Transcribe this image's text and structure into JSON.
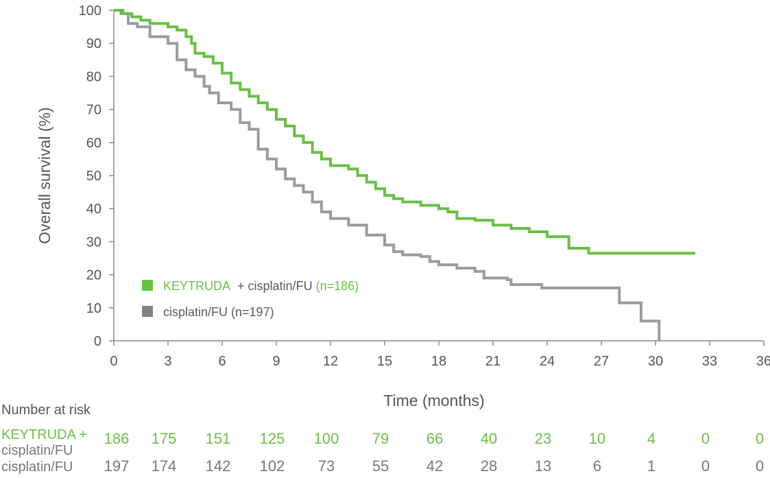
{
  "chart_data": {
    "type": "line",
    "subtype": "kaplan-meier step",
    "xlabel": "Time (months)",
    "ylabel": "Overall survival (%)",
    "xlim": [
      0,
      36
    ],
    "ylim": [
      0,
      100
    ],
    "xticks": [
      0,
      3,
      6,
      9,
      12,
      15,
      18,
      21,
      24,
      27,
      30,
      33,
      36
    ],
    "yticks": [
      0,
      10,
      20,
      30,
      40,
      50,
      60,
      70,
      80,
      90,
      100
    ],
    "grid": false,
    "legend_position": "bottom-left",
    "series": [
      {
        "name_parts": [
          "KEYTRUDA",
          "+",
          "cisplatin/FU",
          "(n=186)"
        ],
        "color": "#6abf45",
        "points": [
          [
            0,
            100
          ],
          [
            0.5,
            99
          ],
          [
            1,
            98
          ],
          [
            1.5,
            97
          ],
          [
            2,
            96
          ],
          [
            3,
            95
          ],
          [
            3.5,
            94
          ],
          [
            4,
            92
          ],
          [
            4.3,
            90
          ],
          [
            4.5,
            87
          ],
          [
            5,
            86
          ],
          [
            5.5,
            84
          ],
          [
            6,
            81
          ],
          [
            6.5,
            78
          ],
          [
            7,
            76
          ],
          [
            7.5,
            74
          ],
          [
            8,
            72
          ],
          [
            8.5,
            70
          ],
          [
            9,
            67
          ],
          [
            9.5,
            65
          ],
          [
            10,
            62
          ],
          [
            10.5,
            60
          ],
          [
            11,
            57
          ],
          [
            11.5,
            55
          ],
          [
            12,
            53
          ],
          [
            13,
            52
          ],
          [
            13.5,
            50
          ],
          [
            14,
            48
          ],
          [
            14.5,
            46
          ],
          [
            15,
            44
          ],
          [
            15.5,
            43
          ],
          [
            16,
            42
          ],
          [
            17,
            41
          ],
          [
            18,
            40
          ],
          [
            18.5,
            39
          ],
          [
            19,
            37
          ],
          [
            20,
            36.5
          ],
          [
            21,
            35
          ],
          [
            22,
            34
          ],
          [
            23,
            33
          ],
          [
            24,
            31.5
          ],
          [
            25.2,
            28
          ],
          [
            26.3,
            26.5
          ],
          [
            32.2,
            26.5
          ]
        ]
      },
      {
        "name": "cisplatin/FU (n=197)",
        "color": "#9b9b9b",
        "legend_color": "#808285",
        "points": [
          [
            0,
            100
          ],
          [
            0.4,
            99
          ],
          [
            0.8,
            96
          ],
          [
            1.3,
            95
          ],
          [
            2,
            92
          ],
          [
            3,
            90
          ],
          [
            3.5,
            85
          ],
          [
            4,
            82
          ],
          [
            4.5,
            80
          ],
          [
            5,
            77
          ],
          [
            5.3,
            75
          ],
          [
            5.8,
            72
          ],
          [
            6.5,
            70
          ],
          [
            7,
            66
          ],
          [
            7.5,
            64
          ],
          [
            8,
            58
          ],
          [
            8.5,
            55
          ],
          [
            9,
            52
          ],
          [
            9.5,
            49
          ],
          [
            10,
            47
          ],
          [
            10.5,
            45
          ],
          [
            11,
            42
          ],
          [
            11.5,
            39
          ],
          [
            12,
            37
          ],
          [
            13,
            35
          ],
          [
            14,
            32
          ],
          [
            15,
            29
          ],
          [
            15.5,
            27
          ],
          [
            16,
            26
          ],
          [
            17,
            25.5
          ],
          [
            17.5,
            24
          ],
          [
            18,
            23
          ],
          [
            19,
            22
          ],
          [
            20,
            21
          ],
          [
            20.5,
            19
          ],
          [
            21.8,
            18.5
          ],
          [
            22,
            17
          ],
          [
            23.7,
            16
          ],
          [
            28,
            11.5
          ],
          [
            29.2,
            6
          ],
          [
            30.2,
            0
          ]
        ]
      }
    ],
    "risk_table": {
      "title": "Number at risk",
      "rows": [
        {
          "label1": "KEYTRUDA +",
          "label2": "cisplatin/FU",
          "values": [
            186,
            175,
            151,
            125,
            100,
            79,
            66,
            40,
            23,
            10,
            4,
            0,
            0
          ]
        },
        {
          "label": "cisplatin/FU",
          "values": [
            197,
            174,
            142,
            102,
            73,
            55,
            42,
            28,
            13,
            6,
            1,
            0,
            0
          ]
        }
      ]
    }
  }
}
